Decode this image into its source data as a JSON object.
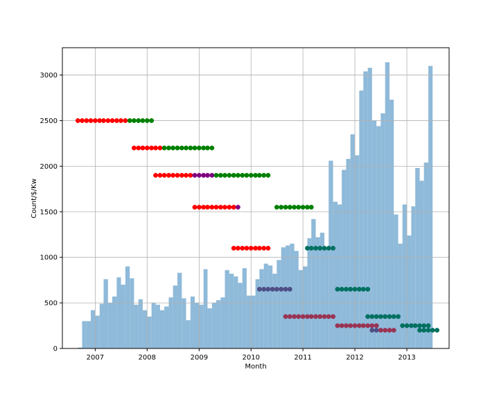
{
  "chart_data": {
    "type": "bar",
    "title": "",
    "xlabel": "Month",
    "ylabel": "Count/$/Kw",
    "x_axis": {
      "type": "date",
      "range": [
        "2006-05-15",
        "2013-10-25"
      ]
    },
    "ylim": [
      0,
      3300
    ],
    "grid": true,
    "x_ticks": [
      {
        "date": "2007-01-01",
        "label": "2007"
      },
      {
        "date": "2008-01-01",
        "label": "2008"
      },
      {
        "date": "2009-01-01",
        "label": "2009"
      },
      {
        "date": "2010-01-01",
        "label": "2010"
      },
      {
        "date": "2011-01-01",
        "label": "2011"
      },
      {
        "date": "2012-01-01",
        "label": "2012"
      },
      {
        "date": "2013-01-01",
        "label": "2013"
      }
    ],
    "y_ticks": [
      0,
      500,
      1000,
      1500,
      2000,
      2500,
      3000
    ],
    "colors": {
      "histogram": "#8fbad9",
      "red": "#ff0000",
      "green": "#008000",
      "purple": "#800080",
      "teal": "#007060",
      "slate": "#4e4f86",
      "maroon": "#9a3454",
      "spine": "#000000",
      "grid": "#b0b0b0"
    },
    "histogram": {
      "start": "2006-09-01",
      "bin_months": 1,
      "values": [
        10,
        300,
        300,
        420,
        360,
        490,
        760,
        500,
        570,
        780,
        700,
        900,
        770,
        480,
        540,
        420,
        350,
        500,
        480,
        420,
        460,
        560,
        690,
        830,
        550,
        310,
        570,
        500,
        480,
        870,
        440,
        500,
        530,
        560,
        860,
        820,
        790,
        720,
        880,
        580,
        580,
        760,
        870,
        930,
        910,
        820,
        970,
        1110,
        1130,
        1150,
        1070,
        860,
        900,
        1210,
        1420,
        1220,
        1270,
        1110,
        2060,
        1610,
        1580,
        1960,
        2080,
        2350,
        2120,
        2830,
        3040,
        3080,
        2500,
        2440,
        2580,
        3140,
        2730,
        1470,
        1150,
        1580,
        1240,
        1560,
        1980,
        1840,
        2040,
        3100
      ]
    },
    "series": [
      {
        "y": 2500,
        "start": "2006-09-01",
        "segments": [
          {
            "count": 12,
            "color": "red"
          },
          {
            "count": 6,
            "color": "green"
          }
        ]
      },
      {
        "y": 2200,
        "start": "2007-10-01",
        "segments": [
          {
            "count": 7,
            "color": "red"
          },
          {
            "count": 12,
            "color": "green"
          }
        ]
      },
      {
        "y": 1900,
        "start": "2008-03-01",
        "segments": [
          {
            "count": 9,
            "color": "red"
          },
          {
            "count": 5,
            "color": "purple"
          },
          {
            "count": 13,
            "color": "green"
          }
        ]
      },
      {
        "y": 1550,
        "start": "2008-12-01",
        "segments": [
          {
            "count": 10,
            "color": "red"
          },
          {
            "count": 1,
            "color": "purple"
          }
        ]
      },
      {
        "y": 1550,
        "start": "2010-07-01",
        "segments": [
          {
            "count": 9,
            "color": "green"
          }
        ]
      },
      {
        "y": 1100,
        "start": "2009-09-01",
        "segments": [
          {
            "count": 9,
            "color": "red"
          }
        ]
      },
      {
        "y": 1100,
        "start": "2011-02-01",
        "segments": [
          {
            "count": 7,
            "color": "teal"
          }
        ]
      },
      {
        "y": 650,
        "start": "2010-03-01",
        "segments": [
          {
            "count": 8,
            "color": "slate"
          }
        ]
      },
      {
        "y": 650,
        "start": "2011-09-01",
        "segments": [
          {
            "count": 8,
            "color": "teal"
          }
        ]
      },
      {
        "y": 350,
        "start": "2010-09-01",
        "segments": [
          {
            "count": 12,
            "color": "maroon"
          }
        ]
      },
      {
        "y": 350,
        "start": "2012-04-01",
        "segments": [
          {
            "count": 8,
            "color": "teal"
          }
        ]
      },
      {
        "y": 250,
        "start": "2011-09-01",
        "segments": [
          {
            "count": 10,
            "color": "maroon"
          }
        ]
      },
      {
        "y": 250,
        "start": "2012-12-01",
        "segments": [
          {
            "count": 7,
            "color": "teal"
          }
        ]
      },
      {
        "y": 200,
        "start": "2012-05-01",
        "segments": [
          {
            "count": 2,
            "color": "slate"
          },
          {
            "count": 4,
            "color": "maroon"
          }
        ]
      },
      {
        "y": 200,
        "start": "2013-04-01",
        "segments": [
          {
            "count": 5,
            "color": "teal"
          }
        ]
      }
    ]
  }
}
